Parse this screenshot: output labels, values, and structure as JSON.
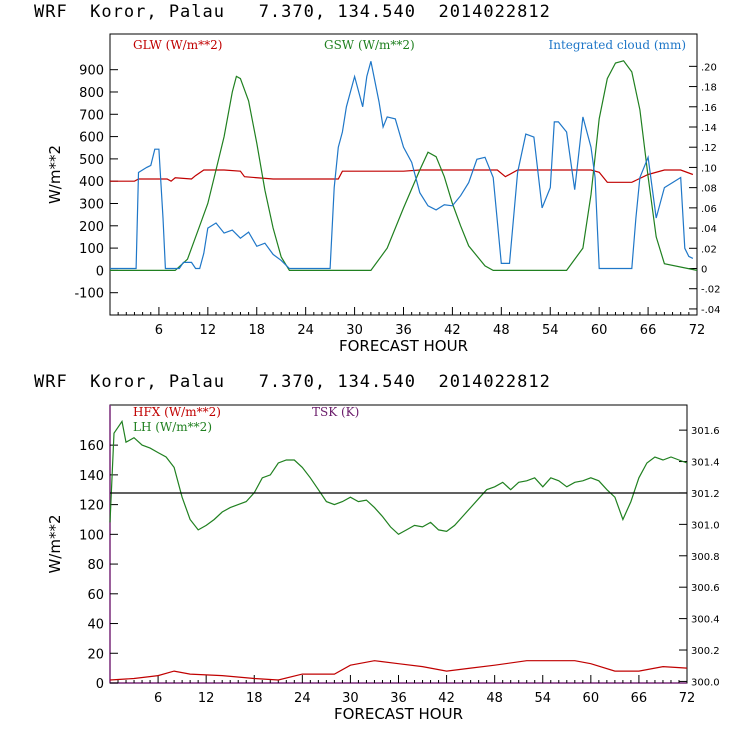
{
  "charts": [
    {
      "title": "WRF  Koror, Palau   7.370, 134.540  2014022812",
      "chart_data": {
        "type": "line",
        "xlabel": "FORECAST HOUR",
        "ylabel": "W/m**2",
        "xlim": [
          0,
          72
        ],
        "ylim": [
          -200,
          1060
        ],
        "y2lim": [
          -0.046,
          0.232
        ],
        "x_ticks": [
          6,
          12,
          18,
          24,
          30,
          36,
          42,
          48,
          54,
          60,
          66,
          72
        ],
        "y_ticks": [
          900,
          800,
          700,
          600,
          500,
          400,
          300,
          200,
          100,
          0,
          -100
        ],
        "y2_ticks": [
          ".20",
          ".18",
          ".16",
          ".14",
          ".12",
          ".10",
          ".08",
          ".06",
          ".04",
          ".02",
          "0",
          "-.02",
          "-.04"
        ],
        "y2_tick_values": [
          0.2,
          0.18,
          0.16,
          0.14,
          0.12,
          0.1,
          0.08,
          0.06,
          0.04,
          0.02,
          0,
          -0.02,
          -0.04
        ],
        "grid": false,
        "series": [
          {
            "name": "GLW (W/m**2)",
            "color": "#c00000",
            "axis": "left",
            "x": [
              0,
              3,
              3.5,
              7,
              7.5,
              8,
              10,
              10.5,
              11.5,
              14,
              16,
              16.5,
              20,
              24,
              28,
              28.5,
              36,
              38,
              42,
              46,
              47.5,
              48.5,
              50,
              52,
              54,
              57,
              59,
              60,
              61,
              64,
              66,
              68,
              70,
              71.5
            ],
            "y": [
              400,
              400,
              410,
              410,
              400,
              415,
              410,
              425,
              450,
              450,
              445,
              420,
              410,
              410,
              410,
              445,
              445,
              450,
              450,
              450,
              450,
              420,
              450,
              450,
              450,
              450,
              450,
              440,
              395,
              395,
              430,
              450,
              450,
              430
            ]
          },
          {
            "name": "GSW (W/m**2)",
            "color": "#208020",
            "axis": "left",
            "x": [
              0,
              8,
              9.5,
              11,
              12,
              13,
              14,
              15,
              15.5,
              16,
              17,
              18,
              19,
              20,
              21,
              22,
              27,
              32,
              34,
              36,
              38,
              39,
              40,
              41,
              42,
              43,
              44,
              46,
              47,
              56,
              58,
              59,
              60,
              61,
              62,
              63,
              64,
              65,
              66,
              67,
              68,
              72
            ],
            "y": [
              0,
              0,
              50,
              200,
              300,
              450,
              600,
              800,
              870,
              860,
              760,
              570,
              360,
              190,
              60,
              0,
              0,
              0,
              100,
              280,
              450,
              530,
              510,
              420,
              300,
              200,
              110,
              20,
              0,
              0,
              100,
              340,
              680,
              860,
              930,
              940,
              890,
              720,
              420,
              150,
              30,
              0
            ]
          },
          {
            "name": "Integrated cloud (mm)",
            "color": "#1f77c8",
            "axis": "right",
            "x": [
              0,
              3.2,
              3.5,
              4.5,
              5,
              5.5,
              6,
              6.5,
              6.8,
              7,
              8.5,
              9,
              10,
              10.5,
              11,
              11.5,
              12,
              13,
              14,
              15,
              16,
              17,
              18,
              19,
              20,
              21,
              22,
              24,
              27,
              27.5,
              28,
              28.5,
              29,
              30,
              31,
              31.5,
              32,
              33,
              33.5,
              34,
              35,
              36,
              37,
              38,
              39,
              40,
              41,
              42,
              43,
              44,
              45,
              46,
              47,
              48,
              49,
              50,
              51,
              52,
              53,
              54,
              54.5,
              55,
              56,
              57,
              58,
              59,
              59.5,
              60,
              62,
              64,
              64.5,
              65,
              66,
              67,
              68,
              69,
              70,
              70.5,
              71,
              71.5
            ],
            "y": [
              0,
              0,
              0.095,
              0.1,
              0.102,
              0.118,
              0.118,
              0.05,
              0.0,
              0.0,
              0.0,
              0.006,
              0.006,
              0.0,
              0.0,
              0.015,
              0.04,
              0.045,
              0.035,
              0.038,
              0.03,
              0.036,
              0.022,
              0.025,
              0.014,
              0.008,
              0.0,
              0.0,
              0.0,
              0.08,
              0.12,
              0.135,
              0.16,
              0.19,
              0.16,
              0.19,
              0.205,
              0.165,
              0.14,
              0.15,
              0.148,
              0.12,
              0.105,
              0.075,
              0.062,
              0.058,
              0.063,
              0.062,
              0.072,
              0.085,
              0.108,
              0.11,
              0.09,
              0.005,
              0.005,
              0.095,
              0.133,
              0.13,
              0.06,
              0.08,
              0.145,
              0.145,
              0.135,
              0.078,
              0.15,
              0.12,
              0.09,
              0.0,
              0.0,
              0.0,
              0.05,
              0.09,
              0.11,
              0.05,
              0.08,
              0.085,
              0.09,
              0.02,
              0.012,
              0.01
            ]
          }
        ]
      }
    },
    {
      "title": "WRF  Koror, Palau   7.370, 134.540  2014022812",
      "chart_data": {
        "type": "line",
        "xlabel": "FORECAST HOUR",
        "ylabel": "W/m**2",
        "xlim": [
          0,
          72
        ],
        "ylim": [
          0,
          187
        ],
        "y2lim": [
          299.99,
          301.76
        ],
        "x_ticks": [
          6,
          12,
          18,
          24,
          30,
          36,
          42,
          48,
          54,
          60,
          66,
          72
        ],
        "y_ticks": [
          160,
          140,
          120,
          100,
          80,
          60,
          40,
          20,
          0
        ],
        "y2_ticks": [
          "301.6",
          "301.4",
          "301.2",
          "301.0",
          "300.8",
          "300.6",
          "300.4",
          "300.2",
          "300.0"
        ],
        "y2_tick_values": [
          301.6,
          301.4,
          301.2,
          301.0,
          300.8,
          300.6,
          300.4,
          300.2,
          300.0
        ],
        "grid": false,
        "series": [
          {
            "name": "HFX (W/m**2)",
            "color": "#c00000",
            "axis": "left",
            "x": [
              0,
              3,
              6,
              8,
              10,
              14,
              18,
              21,
              24,
              28,
              30,
              33,
              36,
              39,
              42,
              45,
              48,
              52,
              58,
              60,
              63,
              66,
              69,
              72
            ],
            "y": [
              2,
              3,
              5,
              8,
              6,
              5,
              3,
              2,
              6,
              6,
              12,
              15,
              13,
              11,
              8,
              10,
              12,
              15,
              15,
              13,
              8,
              8,
              11,
              10
            ]
          },
          {
            "name": "LH (W/m**2)",
            "color": "#208020",
            "axis": "left",
            "x": [
              0,
              0.5,
              1,
              1.5,
              2,
              3,
              4,
              5,
              6,
              7,
              8,
              9,
              10,
              11,
              12,
              13,
              14,
              15,
              16,
              17,
              18,
              19,
              20,
              21,
              22,
              23,
              24,
              25,
              26,
              27,
              28,
              29,
              30,
              31,
              32,
              33,
              34,
              35,
              36,
              37,
              38,
              39,
              40,
              41,
              42,
              43,
              44,
              45,
              46,
              47,
              48,
              49,
              50,
              51,
              52,
              53,
              54,
              55,
              56,
              57,
              58,
              59,
              60,
              61,
              62,
              63,
              64,
              65,
              66,
              67,
              68,
              69,
              70,
              71,
              72
            ],
            "y": [
              108,
              168,
              172,
              176,
              162,
              165,
              160,
              158,
              155,
              152,
              145,
              125,
              110,
              103,
              106,
              110,
              115,
              118,
              120,
              122,
              128,
              138,
              140,
              148,
              150,
              150,
              145,
              138,
              130,
              122,
              120,
              122,
              125,
              122,
              123,
              118,
              112,
              105,
              100,
              103,
              106,
              105,
              108,
              103,
              102,
              106,
              112,
              118,
              124,
              130,
              132,
              135,
              130,
              135,
              136,
              138,
              132,
              138,
              136,
              132,
              135,
              136,
              138,
              136,
              130,
              125,
              110,
              122,
              138,
              148,
              152,
              150,
              152,
              150,
              148
            ]
          },
          {
            "name": "TSK (K)",
            "color": "#6a1b6a",
            "axis": "right",
            "x": [
              0,
              72
            ],
            "y": [
              301.2,
              301.2
            ]
          }
        ]
      }
    }
  ]
}
